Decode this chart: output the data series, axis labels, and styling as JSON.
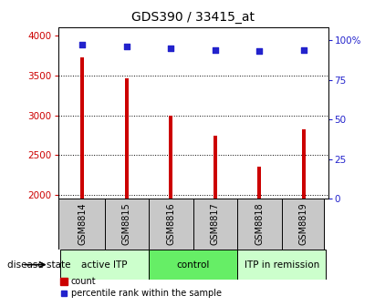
{
  "title": "GDS390 / 33415_at",
  "samples": [
    "GSM8814",
    "GSM8815",
    "GSM8816",
    "GSM8817",
    "GSM8818",
    "GSM8819"
  ],
  "counts": [
    3720,
    3460,
    3000,
    2740,
    2360,
    2820
  ],
  "percentiles": [
    97,
    96,
    95,
    94,
    93,
    94
  ],
  "bar_color": "#cc0000",
  "dot_color": "#2222cc",
  "ylim_left": [
    1950,
    4100
  ],
  "ylim_right": [
    0,
    108
  ],
  "yticks_left": [
    2000,
    2500,
    3000,
    3500,
    4000
  ],
  "yticks_right": [
    0,
    25,
    50,
    75,
    100
  ],
  "yticklabels_right": [
    "0",
    "25",
    "50",
    "75",
    "100%"
  ],
  "groups": [
    {
      "label": "active ITP",
      "indices": [
        0,
        1
      ],
      "color": "#ccffcc"
    },
    {
      "label": "control",
      "indices": [
        2,
        3
      ],
      "color": "#66ee66"
    },
    {
      "label": "ITP in remission",
      "indices": [
        4,
        5
      ],
      "color": "#ccffcc"
    }
  ],
  "disease_state_label": "disease state",
  "legend_count_label": "count",
  "legend_percentile_label": "percentile rank within the sample",
  "label_area_bg": "#c8c8c8",
  "bar_width": 0.08
}
